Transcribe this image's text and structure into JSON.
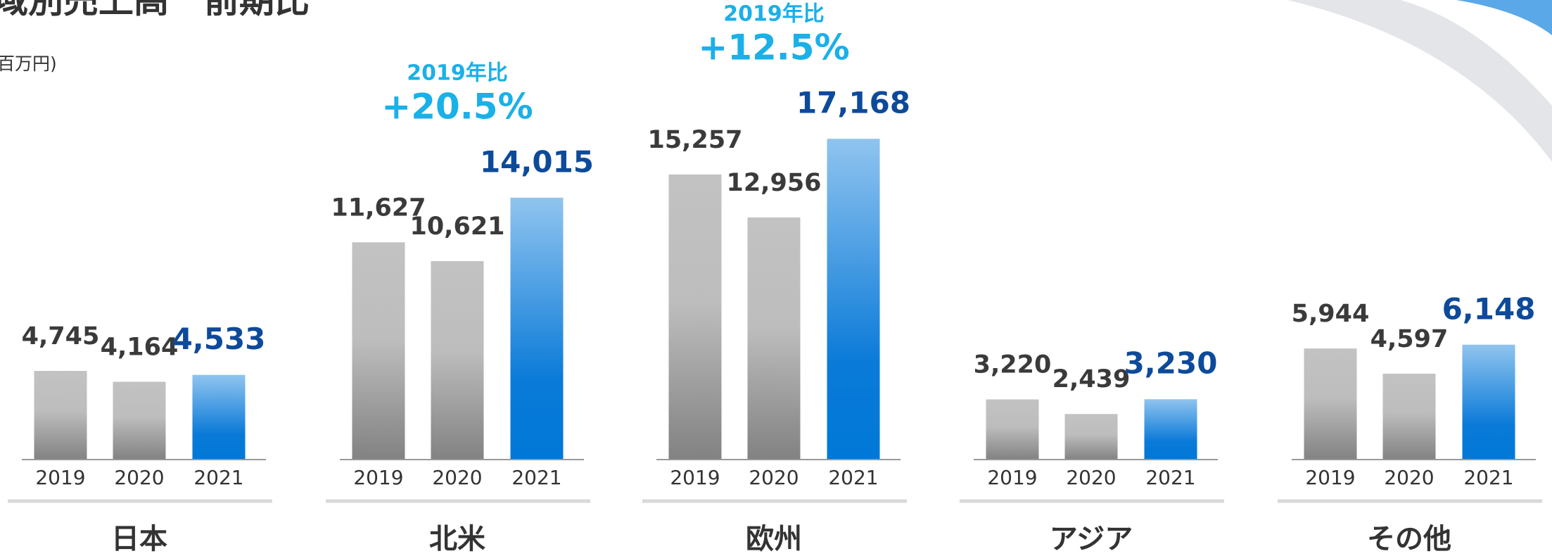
{
  "title": "域別売上高　前期比",
  "unit": "百万円)",
  "chart_data": [
    {
      "type": "bar",
      "region": "日本",
      "categories": [
        "2019",
        "2020",
        "2021"
      ],
      "values": [
        4745,
        4164,
        4533
      ],
      "value_labels": [
        "4,745",
        "4,164",
        "4,533"
      ],
      "ylim": [
        0,
        20000
      ]
    },
    {
      "type": "bar",
      "region": "北米",
      "categories": [
        "2019",
        "2020",
        "2021"
      ],
      "values": [
        11627,
        10621,
        14015
      ],
      "value_labels": [
        "11,627",
        "10,621",
        "14,015"
      ],
      "ylim": [
        0,
        20000
      ],
      "annotation": {
        "caption": "2019年比",
        "change": "+20.5%"
      }
    },
    {
      "type": "bar",
      "region": "欧州",
      "categories": [
        "2019",
        "2020",
        "2021"
      ],
      "values": [
        15257,
        12956,
        17168
      ],
      "value_labels": [
        "15,257",
        "12,956",
        "17,168"
      ],
      "ylim": [
        0,
        20000
      ],
      "annotation": {
        "caption": "2019年比",
        "change": "+12.5%"
      }
    },
    {
      "type": "bar",
      "region": "アジア",
      "categories": [
        "2019",
        "2020",
        "2021"
      ],
      "values": [
        3220,
        2439,
        3230
      ],
      "value_labels": [
        "3,220",
        "2,439",
        "3,230"
      ],
      "ylim": [
        0,
        20000
      ]
    },
    {
      "type": "bar",
      "region": "その他",
      "categories": [
        "2019",
        "2020",
        "2021"
      ],
      "values": [
        5944,
        4597,
        6148
      ],
      "value_labels": [
        "5,944",
        "4,597",
        "6,148"
      ],
      "ylim": [
        0,
        20000
      ]
    }
  ]
}
